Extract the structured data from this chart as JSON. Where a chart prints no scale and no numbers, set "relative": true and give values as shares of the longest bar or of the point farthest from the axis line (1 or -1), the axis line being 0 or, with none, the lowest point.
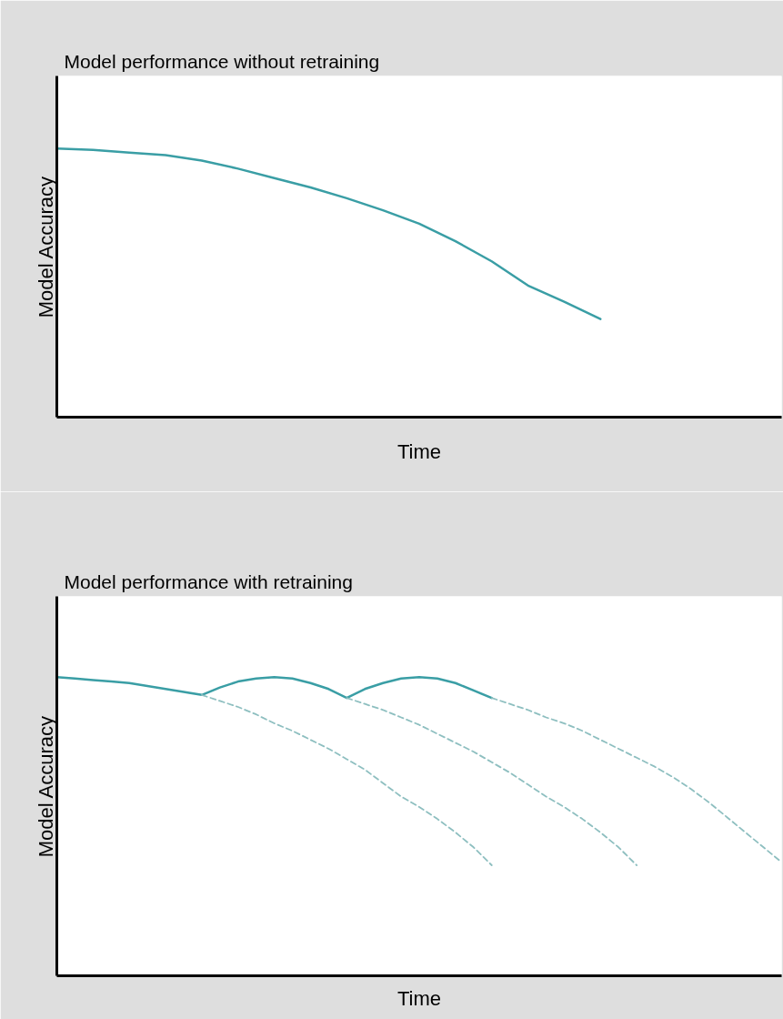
{
  "chart_data": [
    {
      "type": "line",
      "title": "Model performance without retraining",
      "xlabel": "Time",
      "ylabel": "Model Accuracy",
      "relative": true,
      "categories": [
        null,
        null,
        null,
        null,
        null,
        null,
        null,
        null,
        null,
        null,
        null,
        null,
        null,
        null,
        null,
        null,
        null,
        null,
        null,
        null,
        null
      ],
      "series": [
        {
          "color": "#3a9ea5",
          "line_style": "solid",
          "values": [
            1.0,
            0.995,
            0.985,
            0.975,
            0.955,
            0.925,
            0.89,
            0.855,
            0.815,
            0.77,
            0.72,
            0.655,
            0.58,
            0.49,
            0.43,
            0.365,
            null,
            null,
            null,
            null,
            null
          ]
        }
      ]
    },
    {
      "type": "line",
      "title": "Model performance with retraining",
      "xlabel": "Time",
      "ylabel": "Model Accuracy",
      "relative": true,
      "categories": [
        null,
        null,
        null,
        null,
        null,
        null,
        null,
        null,
        null,
        null,
        null,
        null,
        null,
        null,
        null,
        null,
        null,
        null,
        null,
        null,
        null,
        null,
        null,
        null,
        null,
        null,
        null,
        null,
        null,
        null,
        null,
        null,
        null,
        null,
        null,
        null,
        null,
        null,
        null,
        null,
        null
      ],
      "series": [
        {
          "color": "#3a9ea5",
          "line_style": "solid",
          "values": [
            1.0,
            0.995,
            0.99,
            0.985,
            0.98,
            0.97,
            0.96,
            0.95,
            0.94,
            0.965,
            0.985,
            0.995,
            1.0,
            0.995,
            0.98,
            0.96,
            0.93,
            0.96,
            0.98,
            0.995,
            1.0,
            0.995,
            0.98,
            0.955,
            0.93,
            null,
            null,
            null,
            null,
            null,
            null,
            null,
            null,
            null,
            null,
            null,
            null,
            null,
            null,
            null,
            null
          ]
        },
        {
          "color": "#8ebfc0",
          "line_style": "dashed",
          "values": [
            null,
            null,
            null,
            null,
            null,
            null,
            null,
            null,
            0.94,
            0.92,
            0.9,
            0.875,
            0.845,
            0.82,
            0.79,
            0.76,
            0.725,
            0.69,
            0.645,
            0.6,
            0.565,
            0.525,
            0.48,
            0.43,
            0.37,
            null,
            null,
            null,
            null,
            null,
            null,
            null,
            null,
            null,
            null,
            null,
            null,
            null,
            null,
            null,
            null
          ]
        },
        {
          "color": "#8ebfc0",
          "line_style": "dashed",
          "values": [
            null,
            null,
            null,
            null,
            null,
            null,
            null,
            null,
            null,
            null,
            null,
            null,
            null,
            null,
            null,
            null,
            0.93,
            0.91,
            0.89,
            0.865,
            0.84,
            0.81,
            0.78,
            0.75,
            0.715,
            0.68,
            0.64,
            0.6,
            0.565,
            0.525,
            0.48,
            0.43,
            0.37,
            null,
            null,
            null,
            null,
            null,
            null,
            null,
            null
          ]
        },
        {
          "color": "#8ebfc0",
          "line_style": "dashed",
          "values": [
            null,
            null,
            null,
            null,
            null,
            null,
            null,
            null,
            null,
            null,
            null,
            null,
            null,
            null,
            null,
            null,
            null,
            null,
            null,
            null,
            null,
            null,
            null,
            null,
            0.93,
            0.91,
            0.89,
            0.865,
            0.845,
            0.82,
            0.79,
            0.76,
            0.73,
            0.7,
            0.665,
            0.625,
            0.58,
            0.53,
            0.48,
            0.43,
            0.38
          ]
        }
      ]
    }
  ]
}
